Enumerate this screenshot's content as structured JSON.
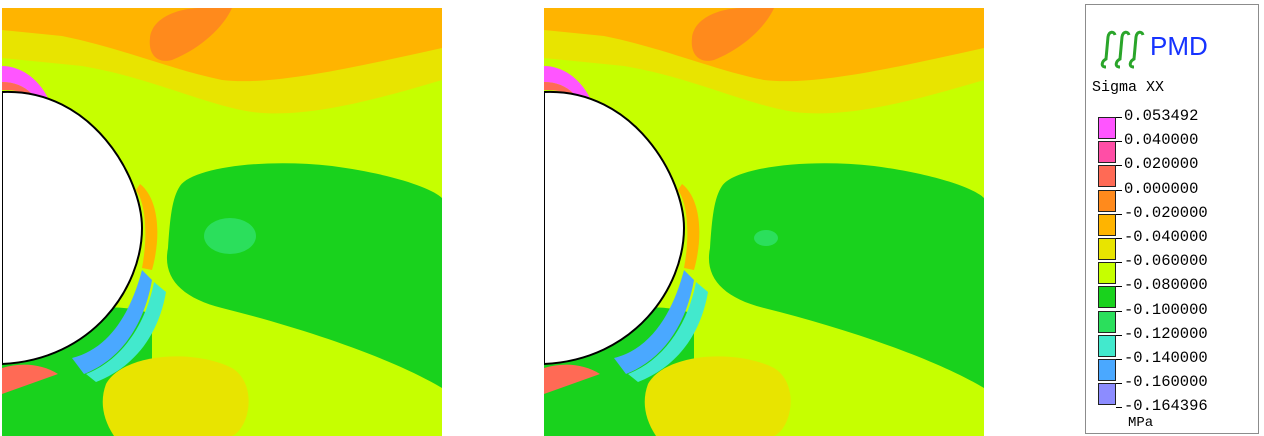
{
  "chart_data": {
    "type": "heatmap",
    "legend": {
      "logo_text": "PMD",
      "title": "Sigma XX",
      "units": "MPa",
      "placement": "right",
      "ticks": [
        "0.053492",
        "0.040000",
        "0.020000",
        "0.000000",
        "-0.020000",
        "-0.040000",
        "-0.060000",
        "-0.080000",
        "-0.100000",
        "-0.120000",
        "-0.140000",
        "-0.160000",
        "-0.164396"
      ],
      "bands": [
        {
          "from": 0.04,
          "to": 0.053492,
          "color": "#ff55ff"
        },
        {
          "from": 0.02,
          "to": 0.04,
          "color": "#ff4ea6"
        },
        {
          "from": 0.0,
          "to": 0.02,
          "color": "#ff6a55"
        },
        {
          "from": -0.02,
          "to": 0.0,
          "color": "#ff8a1c"
        },
        {
          "from": -0.04,
          "to": -0.02,
          "color": "#ffb400"
        },
        {
          "from": -0.06,
          "to": -0.04,
          "color": "#e8e400"
        },
        {
          "from": -0.08,
          "to": -0.06,
          "color": "#c6ff00"
        },
        {
          "from": -0.1,
          "to": -0.08,
          "color": "#19d21d"
        },
        {
          "from": -0.12,
          "to": -0.1,
          "color": "#2bdf5c"
        },
        {
          "from": -0.14,
          "to": -0.12,
          "color": "#42e9cd"
        },
        {
          "from": -0.16,
          "to": -0.14,
          "color": "#4aa8ff"
        },
        {
          "from": -0.164396,
          "to": -0.16,
          "color": "#8c8cff"
        }
      ]
    },
    "panels": [
      {
        "name": "left contour plot"
      },
      {
        "name": "right contour plot"
      }
    ]
  }
}
